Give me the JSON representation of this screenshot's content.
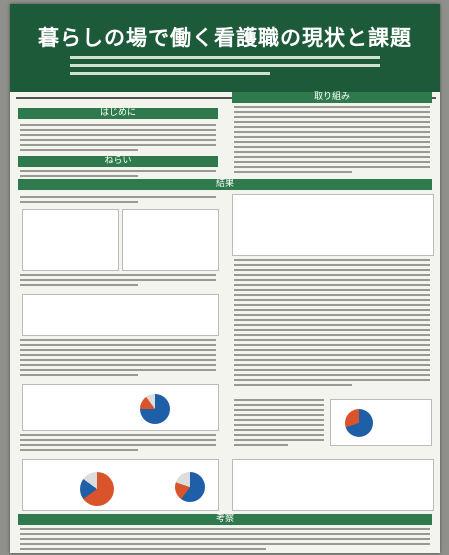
{
  "header": {
    "title": "暮らしの場で働く看護職の現状と課題"
  },
  "sections": [
    {
      "heading": "はじめに"
    },
    {
      "heading": "取り組み"
    },
    {
      "heading": "ねらい"
    },
    {
      "heading": "結果"
    },
    {
      "heading": "考察"
    }
  ]
}
